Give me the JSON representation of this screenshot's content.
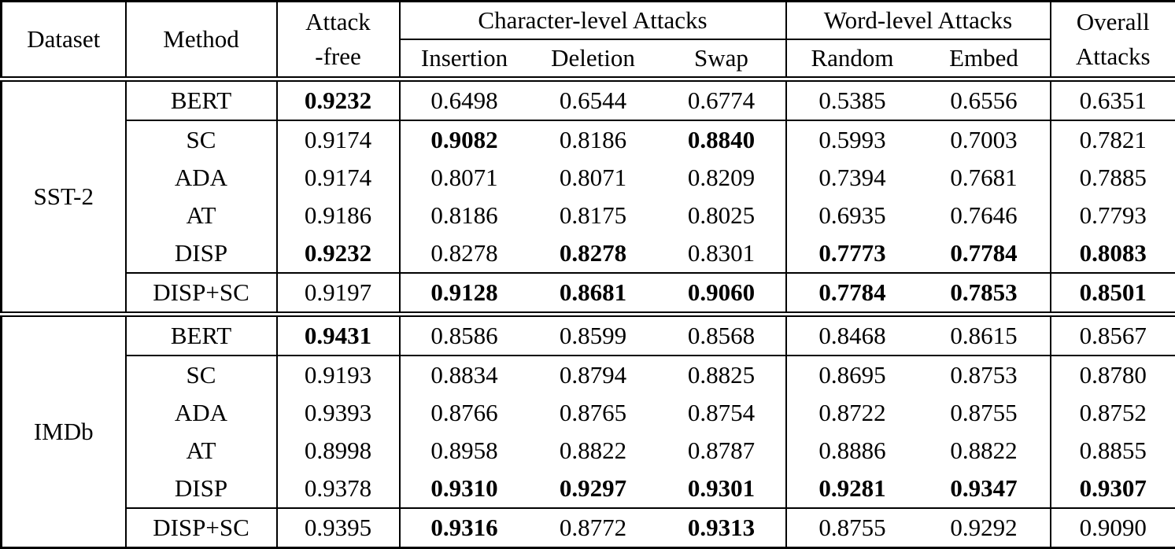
{
  "page": {
    "background": "#ffffff",
    "text_color": "#000000",
    "line_color": "#000000"
  },
  "table": {
    "header": {
      "dataset": "Dataset",
      "method": "Method",
      "attack_free_line1": "Attack",
      "attack_free_line2": "-free",
      "char_group": "Character-level Attacks",
      "char_cols": [
        "Insertion",
        "Deletion",
        "Swap"
      ],
      "word_group": "Word-level Attacks",
      "word_cols": [
        "Random",
        "Embed"
      ],
      "overall_line1": "Overall",
      "overall_line2": "Attacks"
    },
    "value_columns": [
      "attack-free",
      "insertion",
      "deletion",
      "swap",
      "random",
      "embed",
      "overall"
    ],
    "sections": [
      {
        "dataset": "SST-2",
        "rows": [
          {
            "method": "BERT",
            "values": [
              "0.9232",
              "0.6498",
              "0.6544",
              "0.6774",
              "0.5385",
              "0.6556",
              "0.6351"
            ],
            "bold": [
              true,
              false,
              false,
              false,
              false,
              false,
              false
            ]
          },
          {
            "method": "SC",
            "values": [
              "0.9174",
              "0.9082",
              "0.8186",
              "0.8840",
              "0.5993",
              "0.7003",
              "0.7821"
            ],
            "bold": [
              false,
              true,
              false,
              true,
              false,
              false,
              false
            ]
          },
          {
            "method": "ADA",
            "values": [
              "0.9174",
              "0.8071",
              "0.8071",
              "0.8209",
              "0.7394",
              "0.7681",
              "0.7885"
            ],
            "bold": [
              false,
              false,
              false,
              false,
              false,
              false,
              false
            ]
          },
          {
            "method": "AT",
            "values": [
              "0.9186",
              "0.8186",
              "0.8175",
              "0.8025",
              "0.6935",
              "0.7646",
              "0.7793"
            ],
            "bold": [
              false,
              false,
              false,
              false,
              false,
              false,
              false
            ]
          },
          {
            "method": "DISP",
            "values": [
              "0.9232",
              "0.8278",
              "0.8278",
              "0.8301",
              "0.7773",
              "0.7784",
              "0.8083"
            ],
            "bold": [
              true,
              false,
              true,
              false,
              true,
              true,
              true
            ]
          },
          {
            "method": "DISP+SC",
            "values": [
              "0.9197",
              "0.9128",
              "0.8681",
              "0.9060",
              "0.7784",
              "0.7853",
              "0.8501"
            ],
            "bold": [
              false,
              true,
              true,
              true,
              true,
              true,
              true
            ]
          }
        ]
      },
      {
        "dataset": "IMDb",
        "rows": [
          {
            "method": "BERT",
            "values": [
              "0.9431",
              "0.8586",
              "0.8599",
              "0.8568",
              "0.8468",
              "0.8615",
              "0.8567"
            ],
            "bold": [
              true,
              false,
              false,
              false,
              false,
              false,
              false
            ]
          },
          {
            "method": "SC",
            "values": [
              "0.9193",
              "0.8834",
              "0.8794",
              "0.8825",
              "0.8695",
              "0.8753",
              "0.8780"
            ],
            "bold": [
              false,
              false,
              false,
              false,
              false,
              false,
              false
            ]
          },
          {
            "method": "ADA",
            "values": [
              "0.9393",
              "0.8766",
              "0.8765",
              "0.8754",
              "0.8722",
              "0.8755",
              "0.8752"
            ],
            "bold": [
              false,
              false,
              false,
              false,
              false,
              false,
              false
            ]
          },
          {
            "method": "AT",
            "values": [
              "0.8998",
              "0.8958",
              "0.8822",
              "0.8787",
              "0.8886",
              "0.8822",
              "0.8855"
            ],
            "bold": [
              false,
              false,
              false,
              false,
              false,
              false,
              false
            ]
          },
          {
            "method": "DISP",
            "values": [
              "0.9378",
              "0.9310",
              "0.9297",
              "0.9301",
              "0.9281",
              "0.9347",
              "0.9307"
            ],
            "bold": [
              false,
              true,
              true,
              true,
              true,
              true,
              true
            ]
          },
          {
            "method": "DISP+SC",
            "values": [
              "0.9395",
              "0.9316",
              "0.8772",
              "0.9313",
              "0.8755",
              "0.9292",
              "0.9090"
            ],
            "bold": [
              false,
              true,
              false,
              true,
              false,
              false,
              false
            ]
          }
        ]
      }
    ]
  }
}
